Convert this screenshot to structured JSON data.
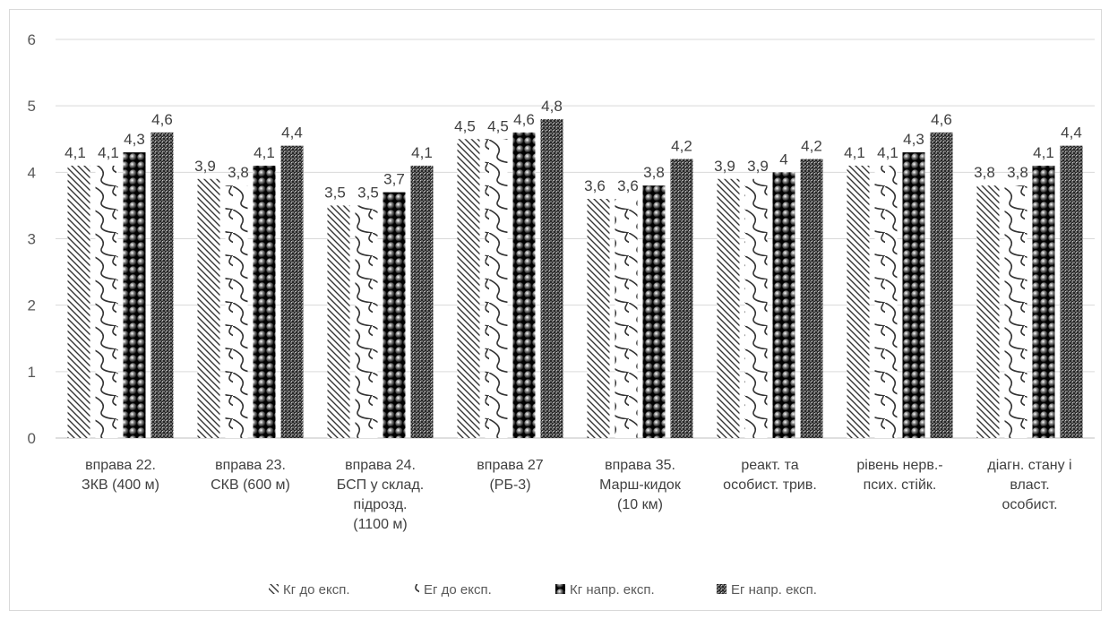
{
  "chart_data": {
    "type": "bar",
    "categories": [
      [
        "вправа 22.",
        "ЗКВ (400 м)"
      ],
      [
        "вправа 23.",
        "СКВ (600 м)"
      ],
      [
        "вправа 24.",
        "БСП у склад.",
        "підрозд.",
        "(1100 м)"
      ],
      [
        "вправа 27",
        "(РБ-3)"
      ],
      [
        "вправа 35.",
        "Марш-кидок",
        "(10 км)"
      ],
      [
        "реакт. та",
        "особист. трив."
      ],
      [
        "рівень нерв.-",
        "псих. стійк."
      ],
      [
        "діагн. стану і",
        "власт.",
        "особист."
      ]
    ],
    "series": [
      {
        "name": "Кг до експ.",
        "values": [
          4.1,
          3.9,
          3.5,
          4.5,
          3.6,
          3.9,
          4.1,
          3.8
        ],
        "labels": [
          "4,1",
          "3,9",
          "3,5",
          "4,5",
          "3,6",
          "3,9",
          "4,1",
          "3,8"
        ]
      },
      {
        "name": "Ег до експ.",
        "values": [
          4.1,
          3.8,
          3.5,
          4.5,
          3.6,
          3.9,
          4.1,
          3.8
        ],
        "labels": [
          "4,1",
          "3,8",
          "3,5",
          "4,5",
          "3,6",
          "3,9",
          "4,1",
          "3,8"
        ]
      },
      {
        "name": "Кг напр. експ.",
        "values": [
          4.3,
          4.1,
          3.7,
          4.6,
          3.8,
          4.0,
          4.3,
          4.1
        ],
        "labels": [
          "4,3",
          "4,1",
          "3,7",
          "4,6",
          "3,8",
          "4",
          "4,3",
          "4,1"
        ]
      },
      {
        "name": "Ег напр. експ.",
        "values": [
          4.6,
          4.4,
          4.1,
          4.8,
          4.2,
          4.2,
          4.6,
          4.4
        ],
        "labels": [
          "4,6",
          "4,4",
          "4,1",
          "4,8",
          "4,2",
          "4,2",
          "4,6",
          "4,4"
        ]
      }
    ],
    "yticks": [
      "0",
      "1",
      "2",
      "3",
      "4",
      "5",
      "6"
    ],
    "ylim": [
      0,
      6
    ],
    "grid": true,
    "legend": "bottom"
  }
}
